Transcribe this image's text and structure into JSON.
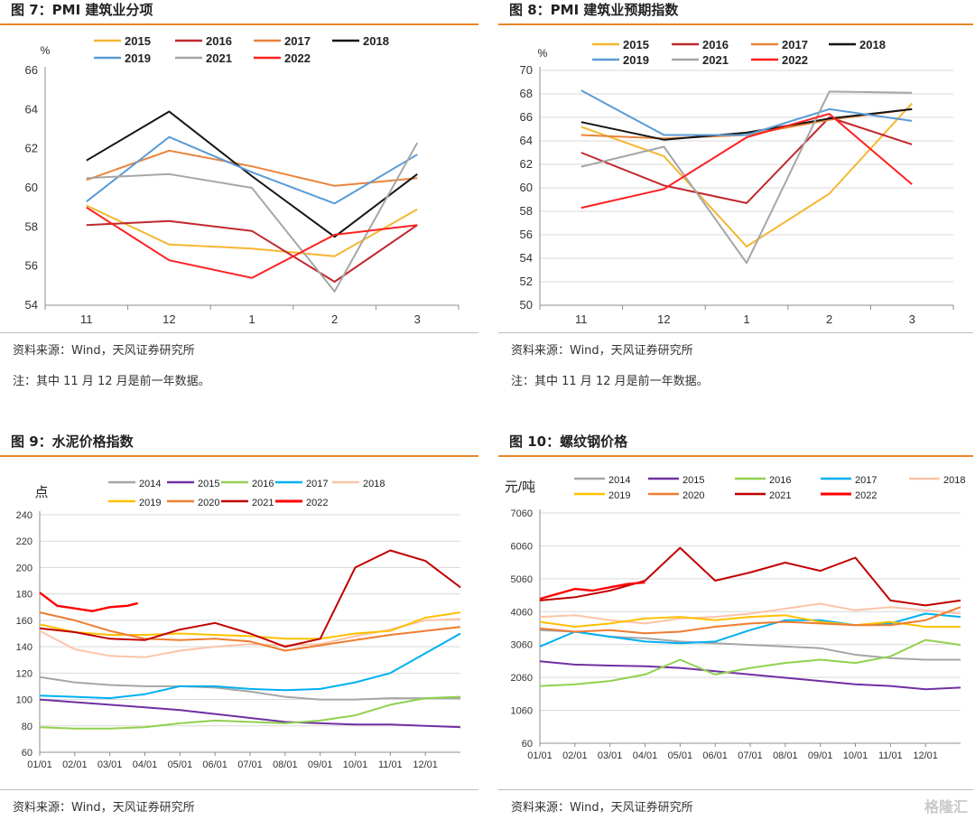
{
  "colors": {
    "accent": "#e8842a"
  },
  "notes": {
    "source": "资料来源：Wind，天风证券研究所",
    "note": "注：其中 11 月 12 月是前一年数据。"
  },
  "watermark": "格隆汇",
  "chart_data": [
    {
      "title": "图 7：PMI 建筑业分项",
      "type": "line",
      "categories": [
        "11",
        "12",
        "1",
        "2",
        "3"
      ],
      "ylabel": "%",
      "ylim": [
        54,
        66
      ],
      "yticks": [
        54,
        56,
        58,
        60,
        62,
        64,
        66
      ],
      "grid": false,
      "legend": "top",
      "series": [
        {
          "name": "2015",
          "color": "#f5b731",
          "values": [
            59.1,
            57.1,
            56.9,
            56.5,
            58.9
          ]
        },
        {
          "name": "2016",
          "color": "#c0282d",
          "values": [
            58.1,
            58.3,
            57.8,
            55.2,
            58.1
          ]
        },
        {
          "name": "2017",
          "color": "#e8843a",
          "values": [
            60.4,
            61.9,
            61.1,
            60.1,
            60.5
          ]
        },
        {
          "name": "2018",
          "color": "#141414",
          "values": [
            61.4,
            63.9,
            60.6,
            57.5,
            60.7
          ]
        },
        {
          "name": "2019",
          "color": "#5b9bd5",
          "values": [
            59.3,
            62.6,
            60.8,
            59.2,
            61.7
          ]
        },
        {
          "name": "2021",
          "color": "#a6a6a6",
          "values": [
            60.5,
            60.7,
            60.0,
            54.7,
            62.3
          ]
        },
        {
          "name": "2022",
          "color": "#ff2020",
          "values": [
            59.0,
            56.3,
            55.4,
            57.6,
            58.1
          ]
        }
      ]
    },
    {
      "title": "图 8：PMI 建筑业预期指数",
      "type": "line",
      "categories": [
        "11",
        "12",
        "1",
        "2",
        "3"
      ],
      "ylabel": "%",
      "ylim": [
        50,
        70
      ],
      "yticks": [
        50,
        52,
        54,
        56,
        58,
        60,
        62,
        64,
        66,
        68,
        70
      ],
      "grid": true,
      "legend": "top",
      "series": [
        {
          "name": "2015",
          "color": "#f5b731",
          "values": [
            65.2,
            62.7,
            55.0,
            59.5,
            67.2
          ]
        },
        {
          "name": "2016",
          "color": "#c0282d",
          "values": [
            63.0,
            60.2,
            58.7,
            66.0,
            63.7
          ]
        },
        {
          "name": "2017",
          "color": "#e8843a",
          "values": [
            64.5,
            64.2,
            64.5,
            65.8,
            66.7
          ]
        },
        {
          "name": "2018",
          "color": "#141414",
          "values": [
            65.6,
            64.1,
            64.7,
            65.9,
            66.7
          ]
        },
        {
          "name": "2019",
          "color": "#5b9bd5",
          "values": [
            68.3,
            64.5,
            64.5,
            66.7,
            65.7
          ]
        },
        {
          "name": "2021",
          "color": "#a6a6a6",
          "values": [
            61.8,
            63.5,
            53.6,
            68.2,
            68.1
          ]
        },
        {
          "name": "2022",
          "color": "#ff2020",
          "values": [
            58.3,
            59.9,
            64.3,
            66.3,
            60.3
          ]
        }
      ]
    },
    {
      "title": "图 9：水泥价格指数",
      "type": "line",
      "xticks": [
        "01/01",
        "02/01",
        "03/01",
        "04/01",
        "05/01",
        "06/01",
        "07/01",
        "08/01",
        "09/01",
        "10/01",
        "11/01",
        "12/01"
      ],
      "ylabel": "点",
      "ylim": [
        60,
        240
      ],
      "yticks": [
        60,
        80,
        100,
        120,
        140,
        160,
        180,
        200,
        220,
        240
      ],
      "grid": true,
      "legend": "top",
      "series": [
        {
          "name": "2014",
          "color": "#a6a6a6",
          "x": [
            0,
            1,
            2,
            3,
            4,
            5,
            6,
            7,
            8,
            9,
            10,
            11,
            12
          ],
          "values": [
            117,
            113,
            111,
            110,
            110,
            109,
            106,
            102,
            100,
            100,
            101,
            101,
            101
          ]
        },
        {
          "name": "2015",
          "color": "#7030a0",
          "x": [
            0,
            1,
            2,
            3,
            4,
            5,
            6,
            7,
            8,
            9,
            10,
            11,
            12
          ],
          "values": [
            100,
            98,
            96,
            94,
            92,
            89,
            86,
            83,
            82,
            81,
            81,
            80,
            79
          ]
        },
        {
          "name": "2016",
          "color": "#92d050",
          "x": [
            0,
            1,
            2,
            3,
            4,
            5,
            6,
            7,
            8,
            9,
            10,
            11,
            12
          ],
          "values": [
            79,
            78,
            78,
            79,
            82,
            84,
            83,
            82,
            84,
            88,
            96,
            101,
            102
          ]
        },
        {
          "name": "2017",
          "color": "#00b0f0",
          "x": [
            0,
            1,
            2,
            3,
            4,
            5,
            6,
            7,
            8,
            9,
            10,
            11,
            12
          ],
          "values": [
            103,
            102,
            101,
            104,
            110,
            110,
            108,
            107,
            108,
            113,
            120,
            135,
            150
          ]
        },
        {
          "name": "2018",
          "color": "#fbc4a8",
          "x": [
            0,
            1,
            2,
            3,
            4,
            5,
            6,
            7,
            8,
            9,
            10,
            11,
            12
          ],
          "values": [
            152,
            138,
            133,
            132,
            137,
            140,
            142,
            141,
            142,
            148,
            153,
            160,
            161
          ]
        },
        {
          "name": "2019",
          "color": "#ffc000",
          "x": [
            0,
            1,
            2,
            3,
            4,
            5,
            6,
            7,
            8,
            9,
            10,
            11,
            12
          ],
          "values": [
            157,
            151,
            149,
            149,
            150,
            149,
            148,
            146,
            146,
            150,
            152,
            162,
            166
          ]
        },
        {
          "name": "2020",
          "color": "#ed7d31",
          "x": [
            0,
            1,
            2,
            3,
            4,
            5,
            6,
            7,
            8,
            9,
            10,
            11,
            12
          ],
          "values": [
            166,
            160,
            152,
            146,
            145,
            146,
            144,
            137,
            141,
            145,
            149,
            152,
            155
          ]
        },
        {
          "name": "2021",
          "color": "#c00000",
          "x": [
            0,
            1,
            2,
            3,
            4,
            5,
            6,
            7,
            8,
            9,
            10,
            11,
            12
          ],
          "values": [
            154,
            151,
            146,
            145,
            153,
            158,
            150,
            140,
            146,
            200,
            213,
            205,
            185
          ]
        },
        {
          "name": "2022",
          "color": "#ff0000",
          "x": [
            0,
            0.5,
            1,
            1.5,
            2,
            2.5,
            2.8
          ],
          "values": [
            181,
            171,
            169,
            167,
            170,
            171,
            173
          ]
        }
      ]
    },
    {
      "title": "图 10：螺纹钢价格",
      "type": "line",
      "xticks": [
        "01/01",
        "02/01",
        "03/01",
        "04/01",
        "05/01",
        "06/01",
        "07/01",
        "08/01",
        "09/01",
        "10/01",
        "11/01",
        "12/01"
      ],
      "ylabel": "元/吨",
      "ylim": [
        60,
        7060
      ],
      "yticks": [
        60,
        1060,
        2060,
        3060,
        4060,
        5060,
        6060,
        7060
      ],
      "grid": true,
      "legend": "top",
      "series": [
        {
          "name": "2014",
          "color": "#a6a6a6",
          "x": [
            0,
            1,
            2,
            3,
            4,
            5,
            6,
            7,
            8,
            9,
            10,
            11,
            12
          ],
          "values": [
            3500,
            3450,
            3300,
            3250,
            3150,
            3100,
            3050,
            3000,
            2950,
            2750,
            2650,
            2600,
            2600
          ]
        },
        {
          "name": "2015",
          "color": "#7030a0",
          "x": [
            0,
            1,
            2,
            3,
            4,
            5,
            6,
            7,
            8,
            9,
            10,
            11,
            12
          ],
          "values": [
            2550,
            2450,
            2420,
            2400,
            2350,
            2250,
            2150,
            2050,
            1950,
            1850,
            1800,
            1700,
            1750
          ]
        },
        {
          "name": "2016",
          "color": "#92d050",
          "x": [
            0,
            1,
            2,
            3,
            4,
            5,
            6,
            7,
            8,
            9,
            10,
            11,
            12
          ],
          "values": [
            1800,
            1850,
            1950,
            2150,
            2600,
            2150,
            2350,
            2500,
            2600,
            2500,
            2700,
            3200,
            3050
          ]
        },
        {
          "name": "2017",
          "color": "#00b0f0",
          "x": [
            0,
            1,
            2,
            3,
            4,
            5,
            6,
            7,
            8,
            9,
            10,
            11,
            12
          ],
          "values": [
            3000,
            3450,
            3300,
            3150,
            3100,
            3150,
            3500,
            3800,
            3800,
            3650,
            3700,
            4000,
            3900
          ]
        },
        {
          "name": "2018",
          "color": "#fbc4a8",
          "x": [
            0,
            1,
            2,
            3,
            4,
            5,
            6,
            7,
            8,
            9,
            10,
            11,
            12
          ],
          "values": [
            3900,
            3950,
            3800,
            3700,
            3850,
            3900,
            4000,
            4150,
            4300,
            4100,
            4200,
            4100,
            4000
          ]
        },
        {
          "name": "2019",
          "color": "#ffc000",
          "x": [
            0,
            1,
            2,
            3,
            4,
            5,
            6,
            7,
            8,
            9,
            10,
            11,
            12
          ],
          "values": [
            3750,
            3600,
            3700,
            3850,
            3900,
            3800,
            3900,
            3950,
            3750,
            3650,
            3750,
            3600,
            3600
          ]
        },
        {
          "name": "2020",
          "color": "#ed7d31",
          "x": [
            0,
            1,
            2,
            3,
            4,
            5,
            6,
            7,
            8,
            9,
            10,
            11,
            12
          ],
          "values": [
            3550,
            3450,
            3500,
            3400,
            3450,
            3600,
            3700,
            3750,
            3700,
            3650,
            3650,
            3800,
            4200
          ]
        },
        {
          "name": "2021",
          "color": "#c00000",
          "x": [
            0,
            1,
            2,
            3,
            4,
            5,
            6,
            7,
            8,
            9,
            10,
            11,
            12
          ],
          "values": [
            4400,
            4500,
            4700,
            5000,
            6000,
            5000,
            5250,
            5550,
            5300,
            5700,
            4400,
            4250,
            4400
          ]
        },
        {
          "name": "2022",
          "color": "#ff0000",
          "x": [
            0,
            0.5,
            1,
            1.5,
            2,
            2.5,
            3
          ],
          "values": [
            4450,
            4600,
            4750,
            4700,
            4800,
            4900,
            4950
          ]
        }
      ]
    }
  ]
}
